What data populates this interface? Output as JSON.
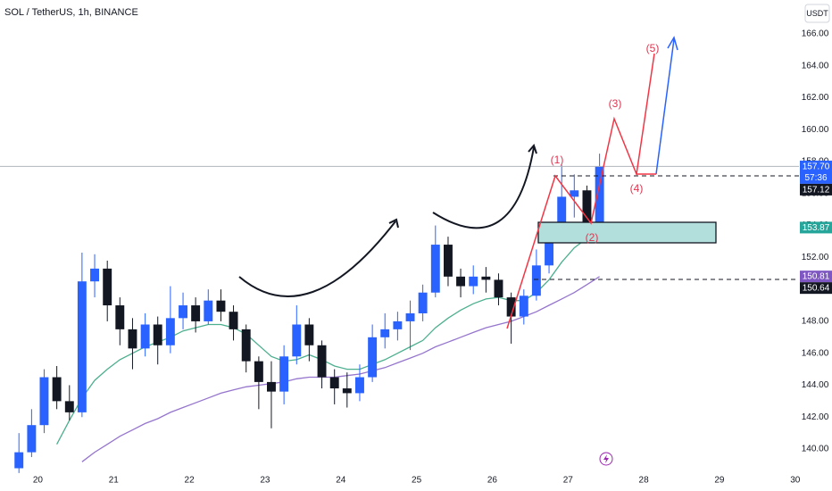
{
  "chart_data": {
    "type": "candlestick",
    "title": "SOL / TetherUS, 1h, BINANCE",
    "currency": "USDT",
    "x": [
      19.75,
      19.917,
      20.083,
      20.25,
      20.417,
      20.583,
      20.75,
      20.917,
      21.083,
      21.25,
      21.417,
      21.583,
      21.75,
      21.917,
      22.083,
      22.25,
      22.417,
      22.583,
      22.75,
      22.917,
      23.083,
      23.25,
      23.417,
      23.583,
      23.75,
      23.917,
      24.083,
      24.25,
      24.417,
      24.583,
      24.75,
      24.917,
      25.083,
      25.25,
      25.417,
      25.583,
      25.75,
      25.917,
      26.083,
      26.25,
      26.417,
      26.583,
      26.75,
      26.917,
      27.083,
      27.25,
      27.417
    ],
    "open": [
      138.8,
      139.8,
      141.5,
      144.5,
      143,
      142.3,
      150.5,
      151.3,
      149,
      147.5,
      146.3,
      147.8,
      146.5,
      148.2,
      149,
      148,
      149.3,
      148.6,
      147.5,
      145.5,
      144.2,
      143.6,
      145.8,
      147.8,
      146.5,
      144.5,
      143.8,
      143.5,
      144.5,
      147,
      147.5,
      148,
      148.5,
      149.8,
      152.8,
      150.8,
      150.2,
      150.8,
      150.6,
      149.5,
      148.3,
      149.6,
      151.5,
      153.6,
      155.8,
      156.2,
      154.2
    ],
    "high": [
      141,
      142.5,
      145,
      145.2,
      144,
      152.3,
      152.2,
      151.8,
      149.5,
      148.2,
      148.5,
      148.3,
      150.2,
      149.8,
      149.5,
      150,
      150,
      149,
      147.8,
      145.8,
      145.5,
      146.5,
      149,
      148.2,
      146.8,
      145,
      144.8,
      145.3,
      147.8,
      148.5,
      148.6,
      149.3,
      150.3,
      154,
      153.3,
      151.3,
      151.5,
      151.4,
      151,
      149.8,
      150,
      152.5,
      154,
      157.8,
      157.2,
      156.5,
      158.5
    ],
    "low": [
      138.5,
      139.5,
      141,
      142.5,
      141.8,
      142,
      149.5,
      148,
      146.5,
      145,
      145.8,
      145.3,
      146,
      147.5,
      147.3,
      147.8,
      148,
      146.8,
      144.8,
      142.5,
      141.3,
      142.8,
      145.3,
      145.5,
      143.8,
      142.8,
      142.6,
      143,
      144.2,
      146.3,
      146.8,
      146.2,
      148,
      149.5,
      150.2,
      149.5,
      149.7,
      149.8,
      149,
      146.6,
      147.8,
      149.3,
      151,
      153.3,
      154.5,
      153.6,
      154
    ],
    "close": [
      139.8,
      141.5,
      144.5,
      143,
      142.3,
      150.5,
      151.3,
      149,
      147.5,
      146.3,
      147.8,
      146.5,
      148.2,
      149,
      148,
      149.3,
      148.6,
      147.5,
      145.5,
      144.2,
      143.6,
      145.8,
      147.8,
      146.5,
      144.5,
      143.8,
      143.5,
      144.5,
      147,
      147.5,
      148,
      148.5,
      149.8,
      152.8,
      150.8,
      150.2,
      150.8,
      150.6,
      149.5,
      148.3,
      149.6,
      151.5,
      153.6,
      155.8,
      156.2,
      154.2,
      157.7
    ],
    "up_color": "#2962ff",
    "down_color": "#131722",
    "moving_averages": [
      {
        "color": "#4caf8f",
        "values": [
          null,
          null,
          null,
          140.3,
          141.8,
          143.2,
          144.3,
          145,
          145.6,
          146,
          146.4,
          146.7,
          147,
          147.4,
          147.6,
          147.8,
          147.8,
          147.6,
          147.2,
          146.5,
          145.8,
          145.5,
          145.6,
          145.9,
          145.6,
          145.2,
          145,
          145,
          145.3,
          145.6,
          146,
          146.4,
          146.8,
          147.6,
          148.2,
          148.7,
          149.1,
          149.4,
          149.5,
          149.3,
          149.3,
          149.8,
          150.6,
          151.7,
          152.6,
          153.2,
          154
        ]
      },
      {
        "color": "#9575cd",
        "values": [
          null,
          null,
          null,
          null,
          null,
          139.2,
          139.8,
          140.3,
          140.8,
          141.2,
          141.6,
          141.9,
          142.3,
          142.6,
          142.9,
          143.2,
          143.5,
          143.7,
          143.9,
          144,
          144.1,
          144.2,
          144.4,
          144.5,
          144.5,
          144.5,
          144.6,
          144.7,
          144.9,
          145.1,
          145.4,
          145.7,
          146,
          146.4,
          146.7,
          147,
          147.3,
          147.6,
          147.8,
          148,
          148.3,
          148.6,
          149,
          149.4,
          149.8,
          150.3,
          150.8
        ]
      }
    ],
    "xlim": [
      19.5,
      30.05
    ],
    "xticks": [
      20,
      21,
      22,
      23,
      24,
      25,
      26,
      27,
      28,
      29,
      30
    ],
    "ylim": [
      138.94,
      168.12
    ],
    "yticks": [
      {
        "value": 140,
        "label": "140.00"
      },
      {
        "value": 142,
        "label": "142.00"
      },
      {
        "value": 144,
        "label": "144.00"
      },
      {
        "value": 146,
        "label": "146.00"
      },
      {
        "value": 148,
        "label": "148.00"
      },
      {
        "value": 150,
        "label": "150.00"
      },
      {
        "value": 152,
        "label": "152.00"
      },
      {
        "value": 154,
        "label": "154.00"
      },
      {
        "value": 156,
        "label": "156.00"
      },
      {
        "value": 158,
        "label": "158.00"
      },
      {
        "value": 160,
        "label": "160.00"
      },
      {
        "value": 162,
        "label": "162.00"
      },
      {
        "value": 164,
        "label": "164.00"
      },
      {
        "value": 166,
        "label": "166.00"
      }
    ],
    "price_badges": [
      {
        "value": 157.7,
        "label": "157.70",
        "color": "#2962ff"
      },
      {
        "value": 157.12,
        "label": "157.12",
        "color": "#131722"
      },
      {
        "value": 153.87,
        "label": "153.87",
        "color": "#26a69a"
      },
      {
        "value": 150.81,
        "label": "150.81",
        "color": "#7e57c2"
      },
      {
        "value": 150.64,
        "label": "150.64",
        "color": "#131722"
      }
    ],
    "countdown": "57:36",
    "annotations": [
      "(1)",
      "(2)",
      "(3)",
      "(4)",
      "(5)"
    ]
  }
}
